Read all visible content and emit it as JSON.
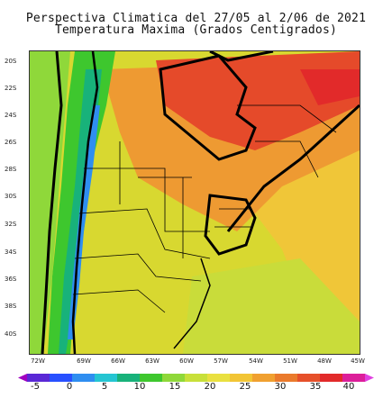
{
  "map": {
    "title_line1": "Perspectiva Climatica del 27/05 al 2/06 de 2021",
    "title_line2": "Temperatura Maxima (Grados Centigrados)",
    "latitude_labels": [
      "20S",
      "22S",
      "24S",
      "26S",
      "28S",
      "30S",
      "32S",
      "34S",
      "36S",
      "38S",
      "40S"
    ],
    "longitude_labels": [
      "72W",
      "69W",
      "66W",
      "63W",
      "60W",
      "57W",
      "54W",
      "51W",
      "48W",
      "45W"
    ],
    "colorbar": {
      "tick_labels": [
        "-5",
        "0",
        "5",
        "10",
        "15",
        "20",
        "25",
        "30",
        "35",
        "40"
      ],
      "colors": [
        "#a000c0",
        "#5a28d6",
        "#2850ff",
        "#2f8ef0",
        "#25c5d2",
        "#18b27a",
        "#3ec72e",
        "#8fd83a",
        "#c8e03a",
        "#e9e040",
        "#f2c535",
        "#f0a030",
        "#ea7a2c",
        "#e6502a",
        "#e22a2a",
        "#dc1f9a",
        "#e040e0"
      ]
    }
  }
}
